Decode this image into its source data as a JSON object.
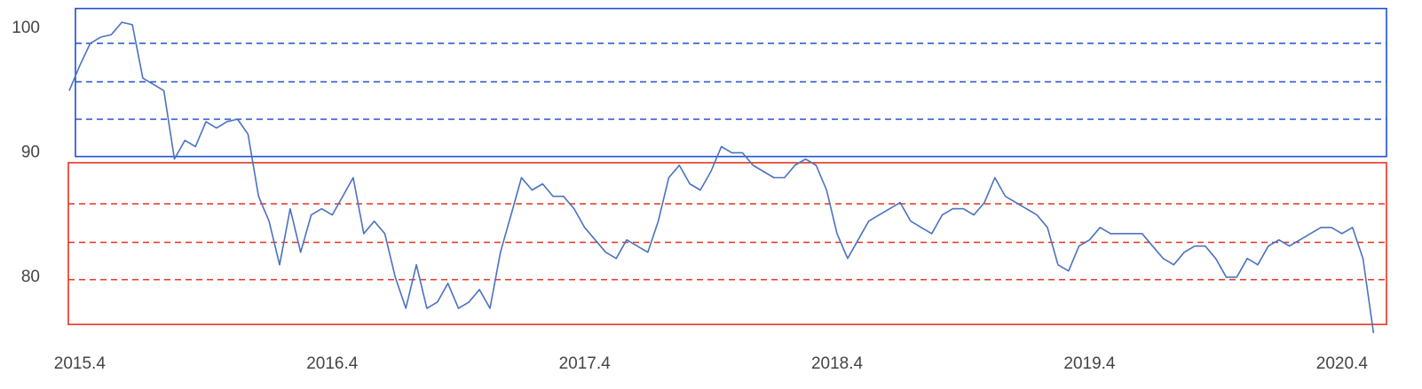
{
  "chart_data": {
    "type": "line",
    "categories": [
      null,
      "2015.4",
      null,
      null,
      null,
      null,
      null,
      null,
      null,
      null,
      null,
      null,
      null,
      null,
      null,
      null,
      null,
      null,
      null,
      null,
      null,
      null,
      null,
      null,
      null,
      "2016.4",
      null,
      null,
      null,
      null,
      null,
      null,
      null,
      null,
      null,
      null,
      null,
      null,
      null,
      null,
      null,
      null,
      null,
      null,
      null,
      null,
      null,
      null,
      null,
      "2017.4",
      null,
      null,
      null,
      null,
      null,
      null,
      null,
      null,
      null,
      null,
      null,
      null,
      null,
      null,
      null,
      null,
      null,
      null,
      null,
      null,
      null,
      null,
      null,
      "2018.4",
      null,
      null,
      null,
      null,
      null,
      null,
      null,
      null,
      null,
      null,
      null,
      null,
      null,
      null,
      null,
      null,
      null,
      null,
      null,
      null,
      null,
      null,
      null,
      "2019.4",
      null,
      null,
      null,
      null,
      null,
      null,
      null,
      null,
      null,
      null,
      null,
      null,
      null,
      null,
      null,
      null,
      null,
      null,
      null,
      null,
      null,
      null,
      null,
      "2020.4",
      null,
      null,
      null
    ],
    "values": [
      95,
      97,
      98.8,
      99.3,
      99.5,
      100.5,
      100.3,
      96,
      95.5,
      95,
      89.5,
      91,
      90.5,
      92.5,
      92,
      92.5,
      92.7,
      91.5,
      86.5,
      84.5,
      81,
      85.5,
      82,
      85,
      85.5,
      85,
      86.5,
      88,
      83.5,
      84.5,
      83.5,
      80,
      77.5,
      81,
      77.5,
      78,
      79.5,
      77.5,
      78,
      79,
      77.5,
      82,
      85,
      88,
      87,
      87.5,
      86.5,
      86.5,
      85.5,
      84,
      83,
      82,
      81.5,
      83,
      82.5,
      82,
      84.5,
      88,
      89,
      87.5,
      87,
      88.5,
      90.5,
      90,
      90,
      89,
      88.5,
      88,
      88,
      89,
      89.5,
      89,
      87,
      83.5,
      81.5,
      83,
      84.5,
      85,
      85.5,
      86,
      84.5,
      84,
      83.5,
      85,
      85.5,
      85.5,
      85,
      86,
      88,
      86.5,
      86,
      85.5,
      85,
      84,
      81,
      80.5,
      82.5,
      83,
      84,
      83.5,
      83.5,
      83.5,
      83.5,
      82.5,
      81.5,
      81,
      82,
      82.5,
      82.5,
      81.5,
      80,
      80,
      81.5,
      81,
      82.5,
      83,
      82.5,
      83,
      83.5,
      84,
      84,
      83.5,
      84,
      81.5,
      75.5
    ],
    "color": "#4a72c0",
    "ylim": [
      74.5,
      102
    ],
    "yticks": [
      80,
      90,
      100
    ],
    "grid": false,
    "annotations": [
      {
        "color": "#1f4fd1",
        "range": [
          89.7,
          101.6
        ],
        "levels": [
          92.7,
          95.7,
          98.8
        ]
      },
      {
        "color": "#e8321e",
        "range": [
          76.2,
          89.2
        ],
        "levels": [
          79.8,
          82.8,
          85.9
        ]
      }
    ]
  }
}
